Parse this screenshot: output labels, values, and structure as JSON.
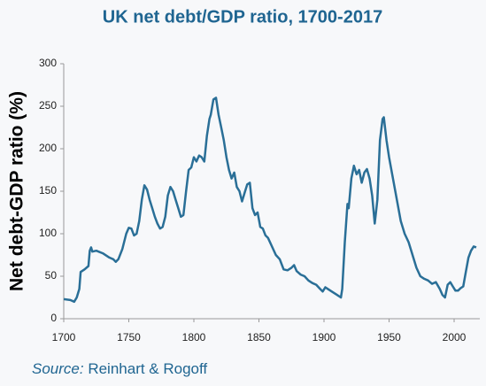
{
  "chart_data": {
    "type": "line",
    "title": "UK net debt/GDP ratio, 1700-2017",
    "y_label": "Net debt-GDP ratio (%)",
    "source_label": "Source:",
    "source": "Reinhart & Rogoff",
    "xlim": [
      1700,
      2017
    ],
    "xticks": [
      1700,
      1750,
      1800,
      1850,
      1900,
      1950,
      2000
    ],
    "ylim": [
      0,
      300
    ],
    "yticks": [
      0,
      50,
      100,
      150,
      200,
      250,
      300
    ],
    "grid": false,
    "series": [
      {
        "color": "#2a6f97",
        "x": [
          1700,
          1705,
          1708,
          1710,
          1712,
          1713,
          1716,
          1719,
          1720,
          1721,
          1722,
          1725,
          1730,
          1735,
          1738,
          1740,
          1742,
          1745,
          1748,
          1750,
          1752,
          1754,
          1756,
          1758,
          1760,
          1762,
          1764,
          1766,
          1768,
          1770,
          1772,
          1774,
          1776,
          1778,
          1780,
          1782,
          1784,
          1786,
          1788,
          1790,
          1792,
          1794,
          1796,
          1798,
          1800,
          1802,
          1804,
          1806,
          1808,
          1810,
          1812,
          1813,
          1815,
          1817,
          1819,
          1821,
          1823,
          1825,
          1827,
          1829,
          1831,
          1833,
          1835,
          1837,
          1839,
          1841,
          1843,
          1845,
          1847,
          1849,
          1851,
          1853,
          1855,
          1857,
          1860,
          1863,
          1866,
          1869,
          1872,
          1875,
          1877,
          1879,
          1882,
          1885,
          1888,
          1891,
          1894,
          1897,
          1899,
          1901,
          1903,
          1906,
          1910,
          1913,
          1914,
          1916,
          1918,
          1919,
          1921,
          1923,
          1925,
          1927,
          1929,
          1931,
          1933,
          1935,
          1937,
          1939,
          1941,
          1943,
          1945,
          1946,
          1948,
          1950,
          1953,
          1956,
          1959,
          1962,
          1965,
          1968,
          1971,
          1974,
          1977,
          1980,
          1983,
          1986,
          1989,
          1991,
          1993,
          1995,
          1997,
          1999,
          2001,
          2003,
          2005,
          2007,
          2009,
          2011,
          2013,
          2015,
          2017
        ],
        "values": [
          23,
          22,
          20,
          25,
          35,
          55,
          58,
          62,
          80,
          84,
          79,
          80,
          77,
          72,
          70,
          67,
          70,
          82,
          100,
          107,
          106,
          98,
          100,
          115,
          140,
          157,
          152,
          140,
          130,
          120,
          112,
          106,
          108,
          120,
          145,
          155,
          150,
          140,
          130,
          120,
          122,
          150,
          175,
          178,
          190,
          185,
          192,
          190,
          185,
          215,
          235,
          240,
          258,
          260,
          240,
          225,
          210,
          190,
          175,
          165,
          172,
          155,
          150,
          138,
          148,
          158,
          160,
          130,
          122,
          125,
          108,
          106,
          98,
          95,
          85,
          75,
          70,
          58,
          57,
          60,
          63,
          56,
          52,
          50,
          45,
          42,
          40,
          35,
          32,
          37,
          35,
          32,
          28,
          25,
          35,
          90,
          135,
          130,
          165,
          180,
          170,
          175,
          160,
          172,
          176,
          165,
          145,
          112,
          140,
          210,
          235,
          237,
          210,
          190,
          165,
          140,
          115,
          100,
          90,
          75,
          60,
          50,
          47,
          45,
          41,
          43,
          35,
          28,
          25,
          40,
          43,
          38,
          33,
          33,
          36,
          38,
          55,
          72,
          80,
          85,
          84
        ]
      }
    ]
  }
}
